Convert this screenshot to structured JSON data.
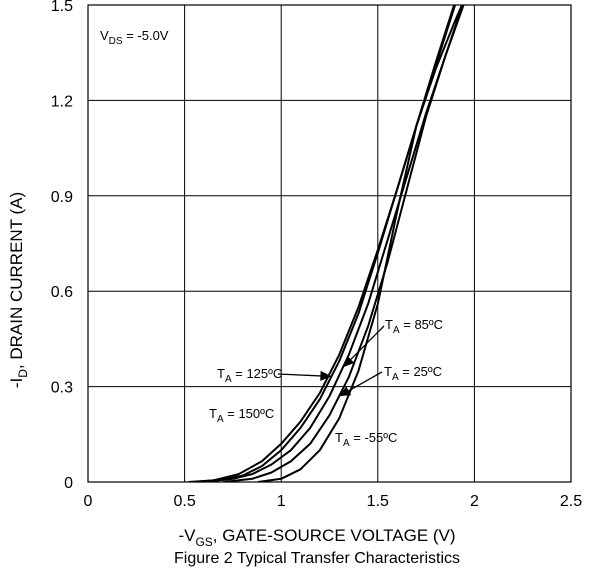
{
  "chart_data": {
    "type": "line",
    "title": "",
    "caption": "Figure 2 Typical Transfer Characteristics",
    "xlabel": {
      "prefix": "-V",
      "sub": "GS",
      "suffix": ", GATE-SOURCE VOLTAGE (V)"
    },
    "ylabel": {
      "prefix": "-I",
      "sub": "D",
      "suffix": ", DRAIN CURRENT (A)"
    },
    "xlim": [
      0,
      2.5
    ],
    "ylim": [
      0,
      1.5
    ],
    "x_ticks": [
      0,
      0.5,
      1,
      1.5,
      2,
      2.5
    ],
    "x_tick_labels": [
      "0",
      "0.5",
      "1",
      "1.5",
      "2",
      "2.5"
    ],
    "y_ticks": [
      0,
      0.3,
      0.6,
      0.9,
      1.2,
      1.5
    ],
    "y_tick_labels": [
      "0",
      "0.3",
      "0.6",
      "0.9",
      "1.2",
      "1.5"
    ],
    "grid": true,
    "condition": {
      "prefix": "V",
      "sub": "DS",
      "suffix": " = -5.0V"
    },
    "series": [
      {
        "name": "T_A = 150°C",
        "label": {
          "prefix": "T",
          "sub": "A",
          "suffix": " = 150ºC"
        },
        "x": [
          0.52,
          0.65,
          0.78,
          0.9,
          1.0,
          1.1,
          1.2,
          1.3,
          1.4,
          1.5,
          1.6,
          1.7,
          1.8,
          1.9
        ],
        "y": [
          0.0,
          0.005,
          0.025,
          0.065,
          0.12,
          0.19,
          0.28,
          0.4,
          0.55,
          0.73,
          0.92,
          1.12,
          1.31,
          1.5
        ]
      },
      {
        "name": "T_A = 125°C",
        "label": {
          "prefix": "T",
          "sub": "A",
          "suffix": " = 125ºC"
        },
        "x": [
          0.55,
          0.7,
          0.8,
          0.9,
          1.0,
          1.1,
          1.2,
          1.3,
          1.4,
          1.5,
          1.6,
          1.7,
          1.8,
          1.9
        ],
        "y": [
          0.0,
          0.008,
          0.02,
          0.05,
          0.1,
          0.17,
          0.26,
          0.38,
          0.53,
          0.72,
          0.92,
          1.12,
          1.32,
          1.51
        ]
      },
      {
        "name": "T_A = 85°C",
        "label": {
          "prefix": "T",
          "sub": "A",
          "suffix": " = 85ºC"
        },
        "x": [
          0.6,
          0.75,
          0.85,
          0.95,
          1.05,
          1.15,
          1.25,
          1.35,
          1.45,
          1.55,
          1.65,
          1.75,
          1.85,
          1.95
        ],
        "y": [
          0.0,
          0.01,
          0.025,
          0.055,
          0.1,
          0.17,
          0.27,
          0.4,
          0.56,
          0.76,
          0.96,
          1.16,
          1.34,
          1.51
        ]
      },
      {
        "name": "T_A = 25°C",
        "label": {
          "prefix": "T",
          "sub": "A",
          "suffix": " = 25ºC"
        },
        "x": [
          0.7,
          0.85,
          0.95,
          1.05,
          1.15,
          1.25,
          1.35,
          1.45,
          1.55,
          1.65,
          1.75,
          1.85,
          1.95
        ],
        "y": [
          0.0,
          0.01,
          0.03,
          0.065,
          0.12,
          0.21,
          0.33,
          0.49,
          0.69,
          0.92,
          1.15,
          1.34,
          1.52
        ]
      },
      {
        "name": "T_A = -55°C",
        "label": {
          "prefix": "T",
          "sub": "A",
          "suffix": " = -55ºC"
        },
        "x": [
          0.88,
          1.0,
          1.1,
          1.2,
          1.3,
          1.4,
          1.5,
          1.6,
          1.7,
          1.8,
          1.9,
          1.95
        ],
        "y": [
          0.0,
          0.01,
          0.04,
          0.1,
          0.2,
          0.35,
          0.56,
          0.85,
          1.12,
          1.3,
          1.45,
          1.52
        ]
      }
    ],
    "annotations": [
      {
        "series": 2,
        "at_x": 1.32,
        "arrow": true
      },
      {
        "series": 1,
        "at_x": 1.26,
        "arrow": true
      },
      {
        "series": 3,
        "at_x": 1.3,
        "arrow": true
      },
      {
        "series": 0,
        "at_x": null,
        "arrow": false
      },
      {
        "series": 4,
        "at_x": null,
        "arrow": false
      }
    ]
  }
}
